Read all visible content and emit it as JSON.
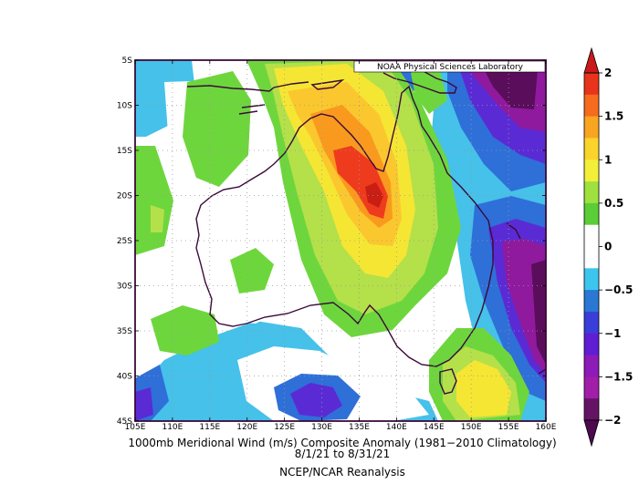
{
  "map": {
    "source_label": "NOAA Physical Sciences Laboratory",
    "lon_ticks": [
      "105E",
      "110E",
      "115E",
      "120E",
      "125E",
      "130E",
      "135E",
      "140E",
      "145E",
      "150E",
      "155E",
      "160E"
    ],
    "lat_ticks": [
      "5S",
      "10S",
      "15S",
      "20S",
      "25S",
      "30S",
      "35S",
      "40S",
      "45S"
    ],
    "colors": {
      "-2": "#5a0d5a",
      "-1.5": "#8f1a9e",
      "-1": "#5a2bd4",
      "-0.5": "#2f6fd8",
      "-0.25": "#45c1ea",
      "0": "#ffffff",
      "0.25": "#6ed63d",
      "0.5": "#b4e04a",
      "1": "#f5e633",
      "1.25": "#fbc72e",
      "1.5": "#f99a1f",
      "2": "#ef3b1d"
    }
  },
  "colorbar": {
    "labels": [
      "2",
      "1.5",
      "1",
      "0.5",
      "0",
      "−0.5",
      "−1",
      "−1.5",
      "−2"
    ],
    "bands": [
      "#e8341c",
      "#f66b1d",
      "#f8a521",
      "#fbd42b",
      "#f3ef38",
      "#9ee13e",
      "#5bcd37",
      "#ffffff",
      "#ffffff",
      "#3cc6ee",
      "#2a78d3",
      "#3a3ed8",
      "#5f1ed3",
      "#8d1bb8",
      "#a21ea9",
      "#651364"
    ]
  },
  "captions": {
    "line1": "1000mb Meridional Wind (m/s) Composite Anomaly (1981−2010 Climatology)",
    "line2": "8/1/21  to 8/31/21",
    "line3": "NCEP/NCAR Reanalysis"
  }
}
